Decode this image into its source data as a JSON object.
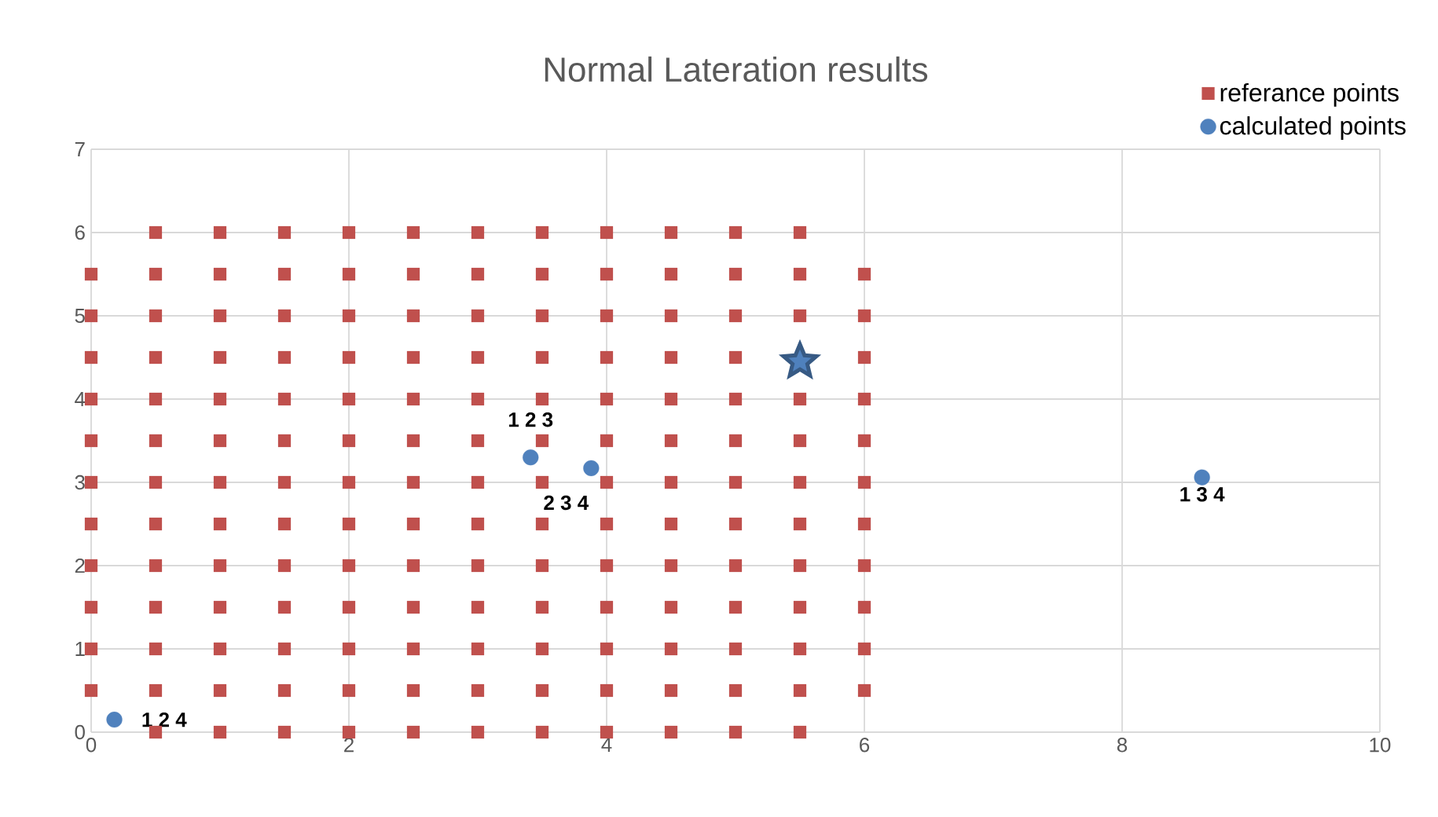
{
  "chart_data": {
    "type": "scatter",
    "title": "Normal Lateration results",
    "xlim": [
      0,
      10
    ],
    "ylim": [
      0,
      7
    ],
    "xticks": [
      0,
      2,
      4,
      6,
      8,
      10
    ],
    "yticks": [
      0,
      1,
      2,
      3,
      4,
      5,
      6,
      7
    ],
    "grid": true,
    "legend": "top right",
    "series": [
      {
        "name": "referance points",
        "color": "#c0504d",
        "marker": "square",
        "x": [
          0,
          0,
          0,
          0,
          0,
          0,
          0,
          0,
          0,
          0,
          0,
          0.5,
          0.5,
          0.5,
          0.5,
          0.5,
          0.5,
          0.5,
          0.5,
          0.5,
          0.5,
          0.5,
          0.5,
          0.5,
          1,
          1,
          1,
          1,
          1,
          1,
          1,
          1,
          1,
          1,
          1,
          1,
          1,
          1.5,
          1.5,
          1.5,
          1.5,
          1.5,
          1.5,
          1.5,
          1.5,
          1.5,
          1.5,
          1.5,
          1.5,
          1.5,
          2,
          2,
          2,
          2,
          2,
          2,
          2,
          2,
          2,
          2,
          2,
          2,
          2,
          2.5,
          2.5,
          2.5,
          2.5,
          2.5,
          2.5,
          2.5,
          2.5,
          2.5,
          2.5,
          2.5,
          2.5,
          2.5,
          3,
          3,
          3,
          3,
          3,
          3,
          3,
          3,
          3,
          3,
          3,
          3,
          3,
          3.5,
          3.5,
          3.5,
          3.5,
          3.5,
          3.5,
          3.5,
          3.5,
          3.5,
          3.5,
          3.5,
          3.5,
          3.5,
          4,
          4,
          4,
          4,
          4,
          4,
          4,
          4,
          4,
          4,
          4,
          4,
          4,
          4.5,
          4.5,
          4.5,
          4.5,
          4.5,
          4.5,
          4.5,
          4.5,
          4.5,
          4.5,
          4.5,
          4.5,
          4.5,
          5,
          5,
          5,
          5,
          5,
          5,
          5,
          5,
          5,
          5,
          5,
          5,
          5,
          5.5,
          5.5,
          5.5,
          5.5,
          5.5,
          5.5,
          5.5,
          5.5,
          5.5,
          5.5,
          5.5,
          5.5,
          6,
          6,
          6,
          6,
          6,
          6,
          6,
          6,
          6,
          6,
          6
        ],
        "values": [
          0.5,
          1,
          1.5,
          2,
          2.5,
          3,
          3.5,
          4,
          4.5,
          5,
          5.5,
          0,
          0.5,
          1,
          1.5,
          2,
          2.5,
          3,
          3.5,
          4,
          4.5,
          5,
          5.5,
          6,
          0,
          0.5,
          1,
          1.5,
          2,
          2.5,
          3,
          3.5,
          4,
          4.5,
          5,
          5.5,
          6,
          0,
          0.5,
          1,
          1.5,
          2,
          2.5,
          3,
          3.5,
          4,
          4.5,
          5,
          5.5,
          6,
          0,
          0.5,
          1,
          1.5,
          2,
          2.5,
          3,
          3.5,
          4,
          4.5,
          5,
          5.5,
          6,
          0,
          0.5,
          1,
          1.5,
          2,
          2.5,
          3,
          3.5,
          4,
          4.5,
          5,
          5.5,
          6,
          0,
          0.5,
          1,
          1.5,
          2,
          2.5,
          3,
          3.5,
          4,
          4.5,
          5,
          5.5,
          6,
          0,
          0.5,
          1,
          1.5,
          2,
          2.5,
          3,
          3.5,
          4,
          4.5,
          5,
          5.5,
          6,
          0,
          0.5,
          1,
          1.5,
          2,
          2.5,
          3,
          3.5,
          4,
          4.5,
          5,
          5.5,
          6,
          0,
          0.5,
          1,
          1.5,
          2,
          2.5,
          3,
          3.5,
          4,
          4.5,
          5,
          5.5,
          6,
          0,
          0.5,
          1,
          1.5,
          2,
          2.5,
          3,
          3.5,
          4,
          4.5,
          5,
          5.5,
          6,
          0,
          0.5,
          1,
          1.5,
          2,
          2.5,
          3,
          3.5,
          4,
          5,
          5.5,
          6,
          0.5,
          1,
          1.5,
          2,
          2.5,
          3,
          3.5,
          4,
          4.5,
          5,
          5.5
        ]
      },
      {
        "name": "calculated points",
        "color": "#4f81bd",
        "marker": "circle",
        "x": [
          0.18,
          3.41,
          3.88,
          8.62
        ],
        "values": [
          0.15,
          3.3,
          3.17,
          3.06
        ]
      },
      {
        "color": "#4f81bd",
        "marker": "star",
        "x": [
          5.5
        ],
        "values": [
          4.45
        ]
      }
    ],
    "annotations": [
      {
        "text": "1 2 4",
        "x": 0.18,
        "y": 0.15
      },
      {
        "text": "1 2 3",
        "x": 3.41,
        "y": 3.3
      },
      {
        "text": "2 3 4",
        "x": 3.88,
        "y": 3.17
      },
      {
        "text": "1 3 4",
        "x": 8.62,
        "y": 3.06
      }
    ]
  }
}
